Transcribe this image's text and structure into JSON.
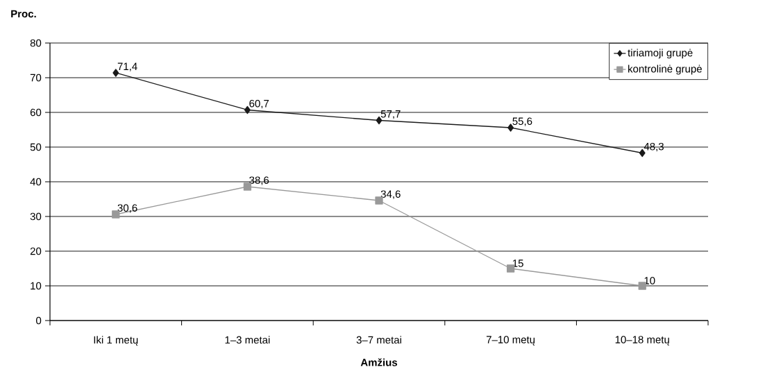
{
  "chart_data": {
    "type": "line",
    "ylabel": "Proc.",
    "xlabel": "Amžius",
    "categories": [
      "Iki 1 metų",
      "1–3 metai",
      "3–7 metai",
      "7–10 metų",
      "10–18 metų"
    ],
    "series": [
      {
        "name": "tiriamoji grupė",
        "color": "#1a1a1a",
        "marker": "diamond",
        "values": [
          71.4,
          60.7,
          57.7,
          55.6,
          48.3
        ],
        "value_labels": [
          "71,4",
          "60,7",
          "57,7",
          "55,6",
          "48,3"
        ]
      },
      {
        "name": "kontrolinė grupė",
        "color": "#999999",
        "marker": "square",
        "values": [
          30.6,
          38.6,
          34.6,
          15,
          10
        ],
        "value_labels": [
          "30,6",
          "38,6",
          "34,6",
          "15",
          "10"
        ]
      }
    ],
    "ylim": [
      0,
      80
    ],
    "yticks": [
      0,
      10,
      20,
      30,
      40,
      50,
      60,
      70,
      80
    ],
    "grid": "y",
    "legend": "top right"
  }
}
